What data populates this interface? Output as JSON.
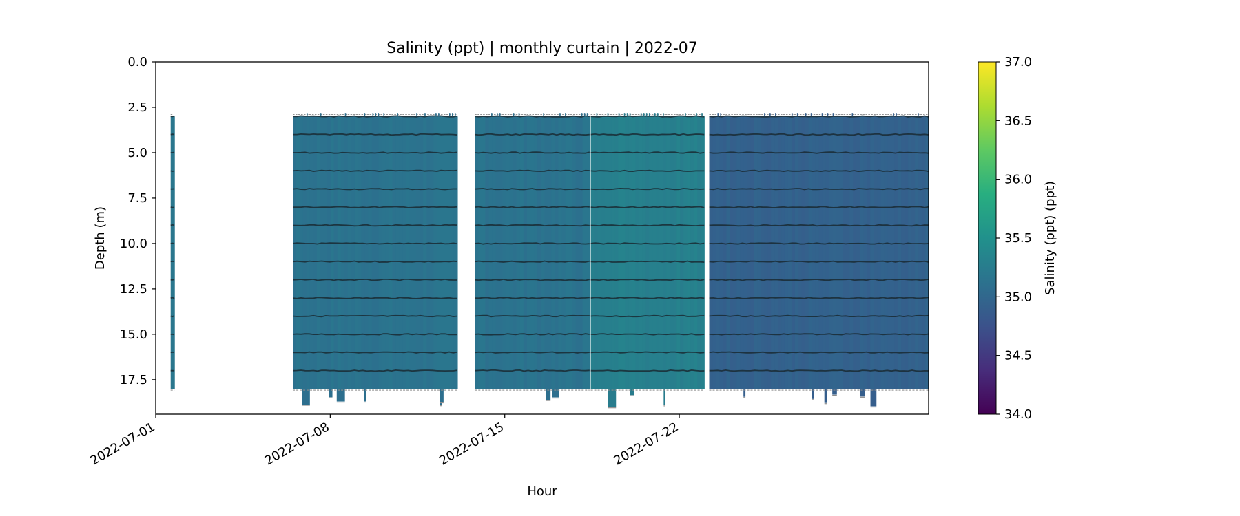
{
  "chart_data": {
    "type": "heatmap",
    "title": "Salinity (ppt) | monthly curtain | 2022-07",
    "xlabel": "Hour",
    "ylabel": "Depth (m)",
    "x_tick_labels": [
      "2022-07-01",
      "2022-07-08",
      "2022-07-15",
      "2022-07-22"
    ],
    "x_ticks_day": [
      0,
      7,
      14,
      21
    ],
    "xlim_day": [
      0,
      31
    ],
    "y_ticks": [
      0.0,
      2.5,
      5.0,
      7.5,
      10.0,
      12.5,
      15.0,
      17.5
    ],
    "y_tick_labels": [
      "0.0",
      "2.5",
      "5.0",
      "7.5",
      "10.0",
      "12.5",
      "15.0",
      "17.5"
    ],
    "ylim": [
      0,
      19.4
    ],
    "y_inverted": true,
    "depth_levels_m": [
      3,
      4,
      5,
      6,
      7,
      8,
      9,
      10,
      11,
      12,
      13,
      14,
      15,
      16,
      17
    ],
    "data_depth_range_m": [
      3.0,
      18.0
    ],
    "segments": [
      {
        "start_day": 0.6,
        "end_day": 0.75,
        "salinity": 35.2
      },
      {
        "start_day": 5.5,
        "end_day": 12.1,
        "salinity": 35.15
      },
      {
        "start_day": 12.8,
        "end_day": 17.4,
        "salinity": 35.15
      },
      {
        "start_day": 17.45,
        "end_day": 22.0,
        "salinity": 35.3
      },
      {
        "start_day": 22.2,
        "end_day": 31.0,
        "salinity": 34.95
      }
    ],
    "colorbar": {
      "label": "Salinity (ppt) (ppt)",
      "colormap": "viridis",
      "range": [
        34.0,
        37.0
      ],
      "ticks": [
        34.0,
        34.5,
        35.0,
        35.5,
        36.0,
        36.5,
        37.0
      ],
      "tick_labels": [
        "34.0",
        "34.5",
        "35.0",
        "35.5",
        "36.0",
        "36.5",
        "37.0"
      ]
    },
    "grid": false
  },
  "colors": {
    "axis": "#000000",
    "background": "#ffffff",
    "contour_line": "#1a2a33",
    "marker_gray": "#8c8c8c"
  }
}
